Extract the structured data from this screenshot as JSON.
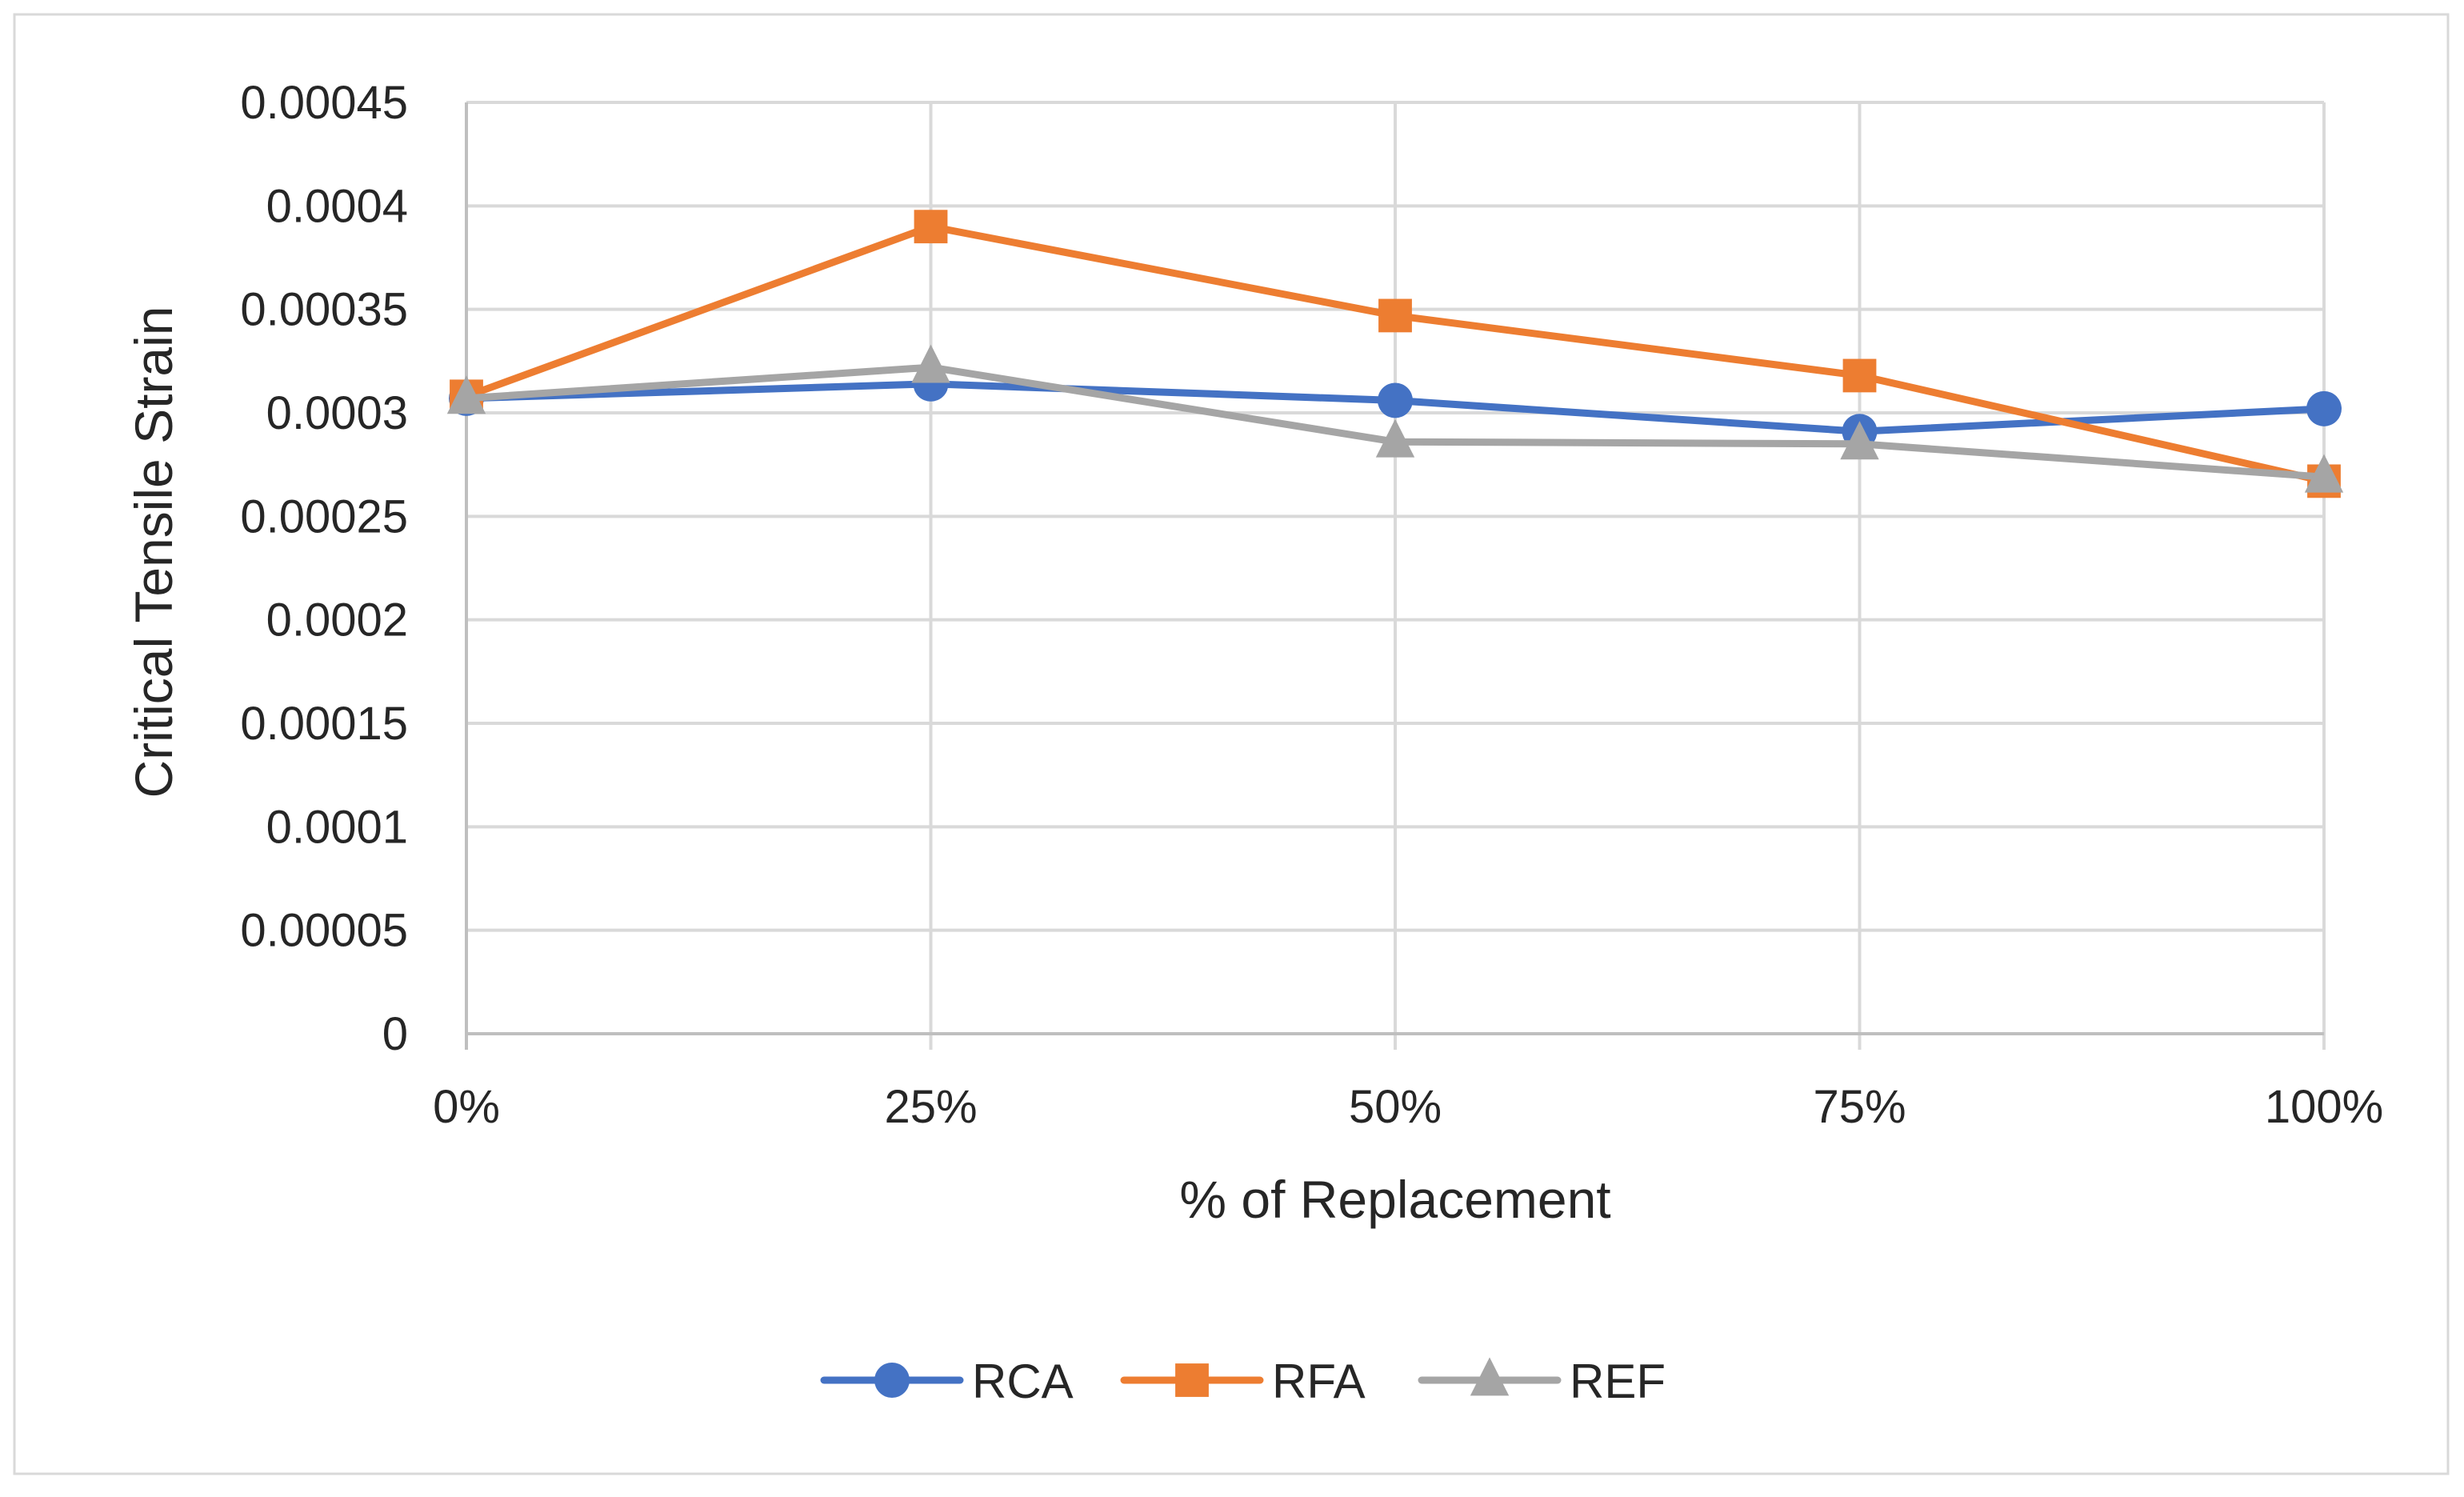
{
  "chart_data": {
    "type": "line",
    "title": "",
    "xlabel": "% of Replacement",
    "ylabel": "Critical Tensile Strain",
    "categories": [
      "0%",
      "25%",
      "50%",
      "75%",
      "100%"
    ],
    "ylim": [
      0,
      0.00045
    ],
    "yticks": [
      {
        "value": 0,
        "label": "0"
      },
      {
        "value": 5e-05,
        "label": "0.00005"
      },
      {
        "value": 0.0001,
        "label": "0.0001"
      },
      {
        "value": 0.00015,
        "label": "0.00015"
      },
      {
        "value": 0.0002,
        "label": "0.0002"
      },
      {
        "value": 0.00025,
        "label": "0.00025"
      },
      {
        "value": 0.0003,
        "label": "0.0003"
      },
      {
        "value": 0.00035,
        "label": "0.00035"
      },
      {
        "value": 0.0004,
        "label": "0.0004"
      },
      {
        "value": 0.00045,
        "label": "0.00045"
      }
    ],
    "grid": true,
    "legend_position": "bottom",
    "series": [
      {
        "name": "RCA",
        "color": "#4472C4",
        "marker": "circle",
        "values": [
          0.000307,
          0.000314,
          0.000306,
          0.000291,
          0.000302
        ]
      },
      {
        "name": "RFA",
        "color": "#ED7D31",
        "marker": "square",
        "values": [
          0.000308,
          0.00039,
          0.000347,
          0.000318,
          0.000267
        ]
      },
      {
        "name": "REF",
        "color": "#A5A5A5",
        "marker": "triangle",
        "values": [
          0.000307,
          0.000322,
          0.000286,
          0.000285,
          0.000269
        ]
      }
    ]
  }
}
